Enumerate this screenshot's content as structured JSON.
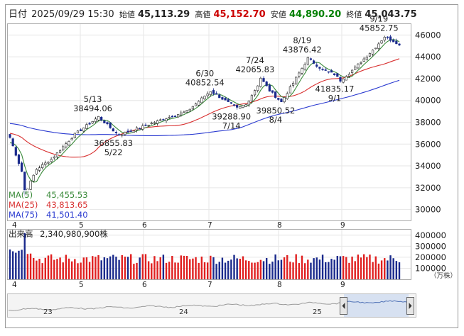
{
  "header": {
    "date_label": "日付",
    "datetime": "2025/09/29 15:30",
    "open_label": "始値",
    "open_value": "45,113.29",
    "high_label": "高値",
    "high_value": "45,152.70",
    "low_label": "安値",
    "low_value": "44,890.20",
    "close_label": "終値",
    "close_value": "45,043.75"
  },
  "legend": {
    "ma5_label": "MA(5)",
    "ma5_value": "45,455.53",
    "ma25_label": "MA(25)",
    "ma25_value": "43,813.65",
    "ma75_label": "MA(75)",
    "ma75_value": "41,501.40"
  },
  "volume_header": {
    "label": "出来高",
    "value": "2,340,980,900株"
  },
  "volume_unit": "（万株）",
  "colors": {
    "up": "#e02020",
    "down": "#1a2a8c",
    "ma5": "#3a8a3a",
    "ma25": "#d83030",
    "ma75": "#2a3ad0",
    "high": "#cc0000",
    "low": "#008000"
  },
  "navigator": {
    "labels": [
      "23",
      "24",
      "25"
    ]
  },
  "chart_data": {
    "type": "candlestick",
    "price_axis": {
      "ylim": [
        29000,
        47000
      ],
      "ticks": [
        "30000",
        "32000",
        "34000",
        "36000",
        "38000",
        "40000",
        "42000",
        "44000",
        "46000"
      ]
    },
    "volume_axis": {
      "ylim": [
        0,
        450000
      ],
      "ticks": [
        "100000",
        "200000",
        "300000",
        "400000"
      ]
    },
    "month_ticks": [
      "4",
      "5",
      "6",
      "7",
      "8",
      "9"
    ],
    "annotations": [
      {
        "value": "38494.06",
        "date": "5/13"
      },
      {
        "value": "36855.83",
        "date": "5/22"
      },
      {
        "value": "40852.54",
        "date": "6/30"
      },
      {
        "value": "39288.90",
        "date": "7/14"
      },
      {
        "value": "42065.83",
        "date": "7/24"
      },
      {
        "value": "39850.52",
        "date": "8/4"
      },
      {
        "value": "43876.42",
        "date": "8/19"
      },
      {
        "value": "41835.17",
        "date": "9/1"
      },
      {
        "value": "45852.75",
        "date": "9/19"
      }
    ],
    "ma_series": [
      {
        "name": "MA(5)",
        "last": 45455.53
      },
      {
        "name": "MA(25)",
        "last": 43813.65
      },
      {
        "name": "MA(75)",
        "last": 41501.4
      }
    ]
  }
}
